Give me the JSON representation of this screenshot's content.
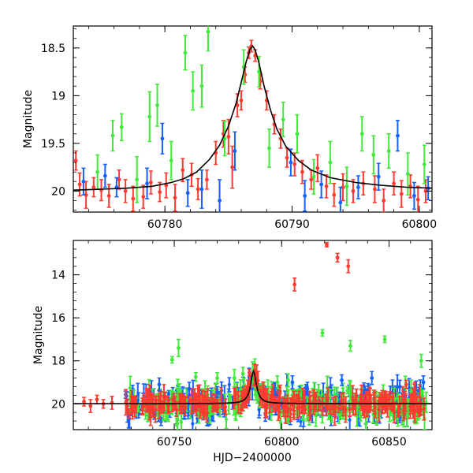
{
  "chart_data": [
    {
      "type": "scatter",
      "panel": "top",
      "xlabel": "",
      "ylabel": "Magnitude",
      "xlim": [
        60772.8,
        60801.0
      ],
      "ylim": [
        20.22,
        18.27
      ],
      "y_inverted": true,
      "xticks": [
        60780,
        60790,
        60800
      ],
      "xtick_labels": [
        "60780",
        "60790",
        "60800"
      ],
      "yticks": [
        18.5,
        19,
        19.5,
        20
      ],
      "ytick_labels": [
        "18.5",
        "19",
        "19.5",
        "20"
      ],
      "grid": false,
      "legend": "none",
      "series": [
        {
          "color": "#ff3b30",
          "points": [
            [
              60773.0,
              19.68,
              0.1
            ],
            [
              60773.3,
              19.93,
              0.12
            ],
            [
              60773.8,
              20.04,
              0.14
            ],
            [
              60774.4,
              19.96,
              0.1
            ],
            [
              60775.0,
              19.99,
              0.11
            ],
            [
              60775.6,
              20.05,
              0.12
            ],
            [
              60776.4,
              19.88,
              0.1
            ],
            [
              60776.9,
              20.0,
              0.12
            ],
            [
              60777.5,
              20.08,
              0.13
            ],
            [
              60778.3,
              20.06,
              0.12
            ],
            [
              60778.9,
              19.91,
              0.12
            ],
            [
              60779.6,
              20.01,
              0.1
            ],
            [
              60780.1,
              19.94,
              0.13
            ],
            [
              60780.8,
              20.07,
              0.14
            ],
            [
              60781.4,
              19.78,
              0.12
            ],
            [
              60782.1,
              19.83,
              0.12
            ],
            [
              60782.6,
              19.98,
              0.11
            ],
            [
              60783.3,
              19.88,
              0.1
            ],
            [
              60784.0,
              19.6,
              0.12
            ],
            [
              60784.6,
              19.4,
              0.14
            ],
            [
              60785.0,
              19.43,
              0.18
            ],
            [
              60785.3,
              19.75,
              0.22
            ],
            [
              60785.7,
              19.1,
              0.12
            ],
            [
              60786.0,
              19.05,
              0.1
            ],
            [
              60786.3,
              18.78,
              0.08
            ],
            [
              60786.6,
              18.55,
              0.06
            ],
            [
              60786.8,
              18.48,
              0.06
            ],
            [
              60787.1,
              18.58,
              0.06
            ],
            [
              60787.5,
              18.85,
              0.08
            ],
            [
              60788.0,
              19.05,
              0.1
            ],
            [
              60788.6,
              19.3,
              0.1
            ],
            [
              60789.1,
              19.45,
              0.1
            ],
            [
              60789.6,
              19.65,
              0.1
            ],
            [
              60790.2,
              19.72,
              0.12
            ],
            [
              60790.8,
              19.8,
              0.12
            ],
            [
              60791.5,
              19.88,
              0.1
            ],
            [
              60792.0,
              19.76,
              0.14
            ],
            [
              60792.7,
              19.95,
              0.12
            ],
            [
              60793.3,
              20.04,
              0.12
            ],
            [
              60794.0,
              19.96,
              0.14
            ],
            [
              60794.8,
              20.0,
              0.12
            ],
            [
              60795.6,
              19.92,
              0.12
            ],
            [
              60796.5,
              19.98,
              0.14
            ],
            [
              60797.2,
              20.1,
              0.12
            ],
            [
              60798.0,
              19.92,
              0.12
            ],
            [
              60798.6,
              20.03,
              0.14
            ],
            [
              60799.3,
              19.95,
              0.12
            ],
            [
              60799.9,
              20.09,
              0.14
            ],
            [
              60800.5,
              20.0,
              0.12
            ]
          ]
        },
        {
          "color": "#1560ff",
          "points": [
            [
              60773.6,
              19.9,
              0.14
            ],
            [
              60775.3,
              19.84,
              0.12
            ],
            [
              60776.2,
              19.96,
              0.1
            ],
            [
              60778.6,
              19.92,
              0.16
            ],
            [
              60779.8,
              19.45,
              0.16
            ],
            [
              60781.8,
              20.02,
              0.14
            ],
            [
              60782.9,
              19.98,
              0.2
            ],
            [
              60784.3,
              20.1,
              0.22
            ],
            [
              60785.5,
              19.58,
              0.2
            ],
            [
              60789.9,
              19.7,
              0.14
            ],
            [
              60791.0,
              20.05,
              0.16
            ],
            [
              60792.3,
              19.93,
              0.14
            ],
            [
              60793.8,
              20.12,
              0.16
            ],
            [
              60795.2,
              19.96,
              0.12
            ],
            [
              60796.8,
              19.85,
              0.14
            ],
            [
              60798.3,
              19.42,
              0.16
            ],
            [
              60799.6,
              20.05,
              0.14
            ],
            [
              60800.7,
              19.97,
              0.12
            ]
          ]
        },
        {
          "color": "#42e83a",
          "points": [
            [
              60774.7,
              19.8,
              0.18
            ],
            [
              60775.9,
              19.42,
              0.16
            ],
            [
              60776.6,
              19.33,
              0.14
            ],
            [
              60777.8,
              19.88,
              0.24
            ],
            [
              60778.8,
              19.22,
              0.26
            ],
            [
              60779.4,
              19.1,
              0.22
            ],
            [
              60780.5,
              19.68,
              0.2
            ],
            [
              60781.6,
              18.55,
              0.18
            ],
            [
              60782.2,
              18.95,
              0.2
            ],
            [
              60782.9,
              18.9,
              0.22
            ],
            [
              60783.4,
              18.33,
              0.2
            ],
            [
              60784.7,
              19.45,
              0.18
            ],
            [
              60786.2,
              18.7,
              0.18
            ],
            [
              60787.4,
              18.75,
              0.16
            ],
            [
              60788.2,
              19.55,
              0.2
            ],
            [
              60789.3,
              19.25,
              0.18
            ],
            [
              60790.4,
              19.4,
              0.2
            ],
            [
              60791.7,
              19.85,
              0.18
            ],
            [
              60793.0,
              19.7,
              0.22
            ],
            [
              60794.3,
              19.95,
              0.2
            ],
            [
              60795.5,
              19.4,
              0.18
            ],
            [
              60796.4,
              19.62,
              0.2
            ],
            [
              60797.6,
              19.58,
              0.18
            ],
            [
              60799.1,
              19.82,
              0.22
            ],
            [
              60800.4,
              19.72,
              0.2
            ]
          ]
        }
      ],
      "model_curve": {
        "color": "#000000",
        "points": [
          [
            60772.8,
            19.99
          ],
          [
            60775.0,
            19.98
          ],
          [
            60777.0,
            19.97
          ],
          [
            60779.0,
            19.95
          ],
          [
            60780.5,
            19.91
          ],
          [
            60781.5,
            19.87
          ],
          [
            60782.5,
            19.8
          ],
          [
            60783.5,
            19.67
          ],
          [
            60784.3,
            19.52
          ],
          [
            60785.0,
            19.32
          ],
          [
            60785.6,
            19.08
          ],
          [
            60786.0,
            18.86
          ],
          [
            60786.4,
            18.64
          ],
          [
            60786.7,
            18.51
          ],
          [
            60786.9,
            18.48
          ],
          [
            60787.1,
            18.52
          ],
          [
            60787.4,
            18.66
          ],
          [
            60787.8,
            18.9
          ],
          [
            60788.3,
            19.15
          ],
          [
            60788.8,
            19.35
          ],
          [
            60789.5,
            19.53
          ],
          [
            60790.5,
            19.68
          ],
          [
            60791.5,
            19.78
          ],
          [
            60793.0,
            19.86
          ],
          [
            60795.0,
            19.91
          ],
          [
            60797.0,
            19.94
          ],
          [
            60799.0,
            19.96
          ],
          [
            60801.0,
            19.97
          ]
        ]
      }
    },
    {
      "type": "scatter",
      "panel": "bottom",
      "xlabel": "HJD−2400000",
      "ylabel": "Magnitude",
      "xlim": [
        60703.0,
        60870.0
      ],
      "ylim": [
        21.2,
        12.4
      ],
      "y_inverted": true,
      "xticks": [
        60750,
        60800,
        60850
      ],
      "xtick_labels": [
        "60750",
        "60800",
        "60850"
      ],
      "yticks": [
        14,
        16,
        18,
        20
      ],
      "ytick_labels": [
        "14",
        "16",
        "18",
        "20"
      ],
      "grid": false,
      "legend": "none",
      "series": [
        {
          "color": "#ff3b30",
          "points": [
            [
              60708,
              19.9,
              0.2
            ],
            [
              60711,
              20.1,
              0.3
            ],
            [
              60714,
              19.8,
              0.2
            ],
            [
              60717,
              20.0,
              0.2
            ],
            [
              60721,
              19.95,
              0.3
            ],
            [
              60785,
              18.55,
              0.15
            ],
            [
              60806,
              14.45,
              0.3
            ],
            [
              60821,
              12.6,
              0.1
            ],
            [
              60826,
              13.2,
              0.2
            ],
            [
              60831,
              13.6,
              0.3
            ],
            [
              60858,
              19.1,
              0.2
            ],
            [
              60862,
              19.3,
              0.3
            ]
          ]
        },
        {
          "color": "#1560ff",
          "points": [
            [
              60743,
              19.1,
              0.3
            ],
            [
              60757,
              19.3,
              0.3
            ],
            [
              60770,
              19.45,
              0.25
            ],
            [
              60797,
              19.3,
              0.3
            ],
            [
              60805,
              19.0,
              0.3
            ],
            [
              60812,
              19.3,
              0.3
            ],
            [
              60828,
              18.9,
              0.25
            ],
            [
              60842,
              18.8,
              0.3
            ],
            [
              60855,
              19.2,
              0.3
            ],
            [
              60866,
              19.0,
              0.3
            ]
          ]
        },
        {
          "color": "#42e83a",
          "points": [
            [
              60749,
              17.95,
              0.15
            ],
            [
              60752,
              17.4,
              0.4
            ],
            [
              60760,
              18.75,
              0.2
            ],
            [
              60770,
              18.8,
              0.25
            ],
            [
              60778,
              18.8,
              0.4
            ],
            [
              60782,
              18.6,
              0.3
            ],
            [
              60798,
              19.0,
              0.3
            ],
            [
              60803,
              18.9,
              0.3
            ],
            [
              60819,
              16.7,
              0.15
            ],
            [
              60832,
              17.3,
              0.25
            ],
            [
              60848,
              17.0,
              0.15
            ],
            [
              60865,
              18.0,
              0.3
            ]
          ]
        }
      ],
      "dense_band": {
        "x_range": [
          60727,
          60868
        ],
        "baseline_mag": 20.0,
        "scatter_mag": 0.35,
        "event_peak": {
          "x": 60787,
          "mag": 18.6
        }
      },
      "model_curve": {
        "color": "#000000",
        "baseline_mag": 19.99,
        "peak_x": 60786.9,
        "peak_mag": 18.48
      }
    }
  ]
}
